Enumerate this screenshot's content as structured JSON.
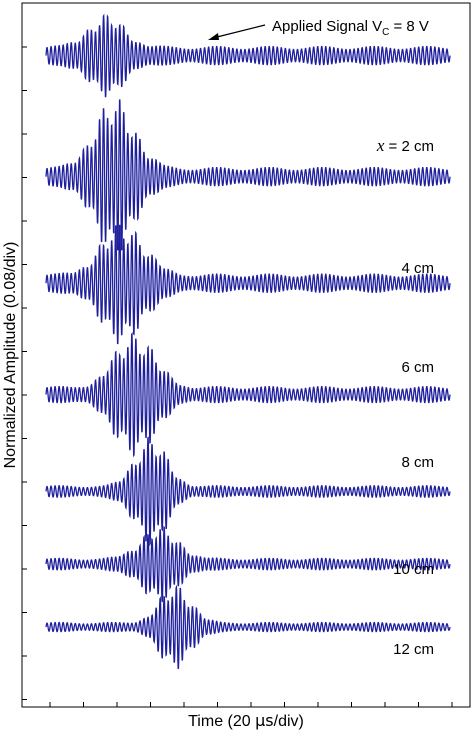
{
  "chart_data": {
    "type": "line",
    "xlabel_prefix": "Time (20 ",
    "xlabel_unit": "μs",
    "xlabel_suffix": "/div)",
    "ylabel": "Normalized Amplitude (0.08/div)",
    "color": "#1f1f9e",
    "x_range": [
      0,
      10
    ],
    "y_range": [
      0,
      14
    ],
    "annotation": {
      "text_prefix": "Applied Signal V",
      "text_sub": "C",
      "text_suffix": " = 8 V"
    },
    "series": [
      {
        "label": "",
        "baseline": 13.1,
        "amp": 0.2,
        "burst_center": 1.5,
        "burst_width": 0.65,
        "burst_amp": 0.55,
        "tail_amp": 0.16,
        "period": 0.1
      },
      {
        "label_var": "x",
        "label_rest": " = 2 cm",
        "baseline": 10.6,
        "amp": 0.2,
        "burst_center": 1.7,
        "burst_width": 0.7,
        "burst_amp": 1.2,
        "tail_amp": 0.16,
        "period": 0.1
      },
      {
        "label": "4 cm",
        "baseline": 8.4,
        "amp": 0.18,
        "burst_center": 1.9,
        "burst_width": 0.75,
        "burst_amp": 0.9,
        "tail_amp": 0.16,
        "period": 0.1
      },
      {
        "label": "6 cm",
        "baseline": 6.1,
        "amp": 0.18,
        "burst_center": 2.2,
        "burst_width": 0.7,
        "burst_amp": 0.95,
        "tail_amp": 0.14,
        "period": 0.1
      },
      {
        "label": "8 cm",
        "baseline": 4.1,
        "amp": 0.12,
        "burst_center": 2.6,
        "burst_width": 0.55,
        "burst_amp": 0.85,
        "tail_amp": 0.1,
        "period": 0.1
      },
      {
        "label": "10 cm",
        "baseline": 2.6,
        "amp": 0.14,
        "burst_center": 2.8,
        "burst_width": 0.65,
        "burst_amp": 0.55,
        "tail_amp": 0.1,
        "period": 0.1
      },
      {
        "label": "12 cm",
        "baseline": 1.3,
        "amp": 0.12,
        "burst_center": 3.2,
        "burst_width": 0.55,
        "burst_amp": 0.65,
        "tail_amp": 0.08,
        "period": 0.1
      }
    ]
  }
}
